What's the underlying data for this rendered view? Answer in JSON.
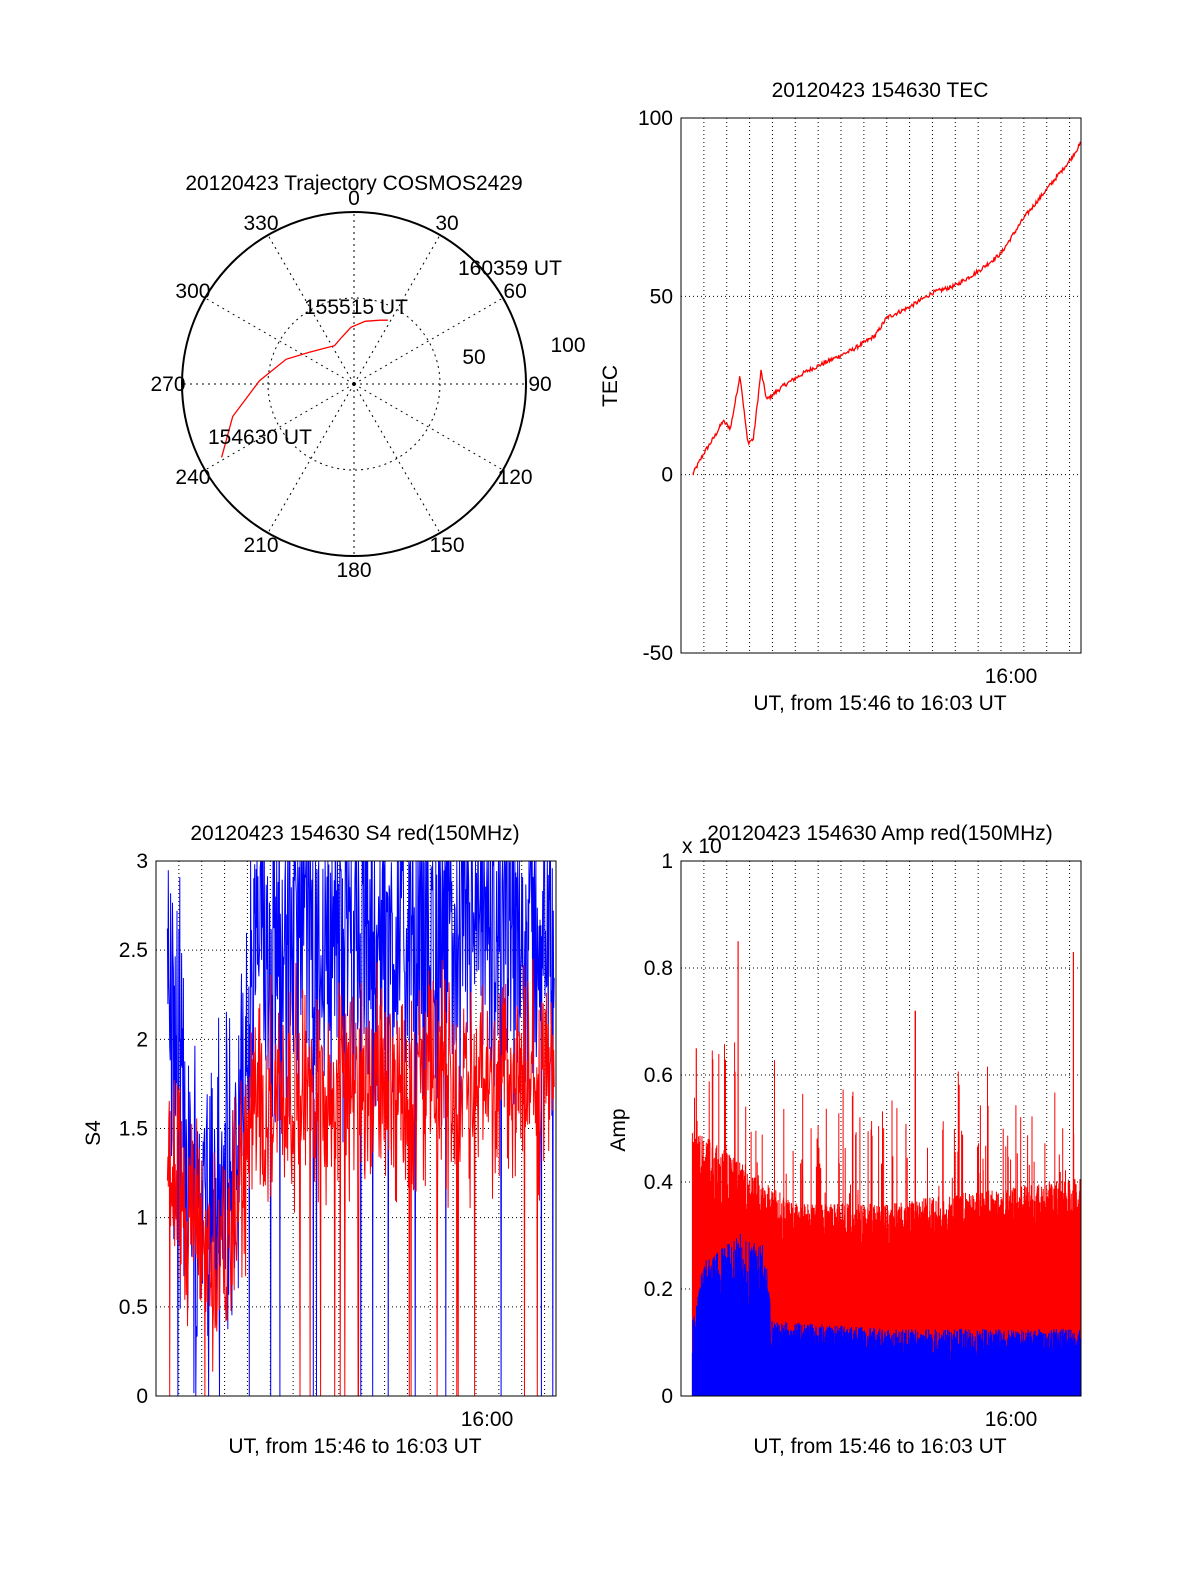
{
  "chart_data": [
    {
      "type": "polar",
      "title": "20120423 Trajectory COSMOS2429",
      "angle_labels": [
        "0",
        "30",
        "60",
        "90",
        "120",
        "150",
        "180",
        "210",
        "240",
        "270",
        "300",
        "330"
      ],
      "radius_labels": [
        "50",
        "100"
      ],
      "rlim": [
        0,
        100
      ],
      "series": [
        {
          "color": "#ff0000",
          "points": [
            {
              "az": 241,
              "el": 12
            },
            {
              "az": 255,
              "el": 27
            },
            {
              "az": 272,
              "el": 45
            },
            {
              "az": 290,
              "el": 58
            },
            {
              "az": 305,
              "el": 68
            },
            {
              "az": 320,
              "el": 73
            },
            {
              "az": 333,
              "el": 75
            },
            {
              "az": 345,
              "el": 72
            },
            {
              "az": 357,
              "el": 67
            },
            {
              "az": 10,
              "el": 63
            },
            {
              "az": 22,
              "el": 60
            },
            {
              "az": 28,
              "el": 58
            }
          ]
        }
      ],
      "annotations": [
        {
          "text": "154630 UT"
        },
        {
          "text": "155515 UT"
        },
        {
          "text": "160359 UT"
        }
      ]
    },
    {
      "type": "line",
      "title": "20120423 154630 TEC",
      "ylabel": "TEC",
      "xlabel": "UT, from 15:46 to 16:03 UT",
      "xlim": [
        "15:46:00",
        "16:03:30"
      ],
      "ylim": [
        -50,
        100
      ],
      "yticks": [
        -50,
        0,
        50,
        100
      ],
      "xticks": [
        {
          "time": "16:00:00",
          "label": "16:00"
        }
      ],
      "grid": true,
      "series": [
        {
          "color": "#ff0000",
          "points": [
            [
              "15:46:30",
              0
            ],
            [
              "15:47:00",
              6
            ],
            [
              "15:47:30",
              11
            ],
            [
              "15:47:50",
              15
            ],
            [
              "15:48:10",
              13
            ],
            [
              "15:48:35",
              28
            ],
            [
              "15:48:55",
              9
            ],
            [
              "15:49:10",
              10
            ],
            [
              "15:49:30",
              29
            ],
            [
              "15:49:45",
              21
            ],
            [
              "15:50:30",
              25
            ],
            [
              "15:51:30",
              29
            ],
            [
              "15:52:30",
              32
            ],
            [
              "15:53:30",
              35
            ],
            [
              "15:54:30",
              39
            ],
            [
              "15:55:00",
              44
            ],
            [
              "15:56:00",
              47
            ],
            [
              "15:57:00",
              51
            ],
            [
              "15:58:00",
              53
            ],
            [
              "15:59:00",
              57
            ],
            [
              "16:00:00",
              62
            ],
            [
              "16:01:00",
              72
            ],
            [
              "16:02:00",
              80
            ],
            [
              "16:03:00",
              88
            ],
            [
              "16:03:30",
              93
            ]
          ]
        }
      ]
    },
    {
      "type": "line",
      "title": "20120423 154630 S4 red(150MHz)",
      "ylabel": "S4",
      "xlabel": "UT, from 15:46 to 16:03 UT",
      "xlim": [
        "15:46:00",
        "16:03:30"
      ],
      "ylim": [
        0,
        3
      ],
      "yticks": [
        0,
        0.5,
        1,
        1.5,
        2,
        2.5,
        3
      ],
      "yticklabels": [
        "0",
        "0.5",
        "1",
        "1.5",
        "2",
        "2.5",
        "3"
      ],
      "xticks": [
        {
          "time": "16:00:00",
          "label": "16:00"
        }
      ],
      "grid": true,
      "series": [
        {
          "color": "#0000ff",
          "profile": [
            [
              "15:46:30",
              2.3
            ],
            [
              "15:47:30",
              1.2
            ],
            [
              "15:48:30",
              1.1
            ],
            [
              "15:49:15",
              1.1
            ],
            [
              "15:49:45",
              1.6
            ],
            [
              "15:50:30",
              2.6
            ],
            [
              "15:55:00",
              2.6
            ],
            [
              "16:03:30",
              2.6
            ]
          ]
        },
        {
          "color": "#ff0000",
          "profile": [
            [
              "15:46:30",
              1.5
            ],
            [
              "15:47:00",
              1.2
            ],
            [
              "15:47:30",
              1.0
            ],
            [
              "15:48:30",
              0.75
            ],
            [
              "15:49:15",
              0.8
            ],
            [
              "15:49:40",
              1.2
            ],
            [
              "15:50:30",
              1.7
            ],
            [
              "15:55:00",
              1.75
            ],
            [
              "16:03:30",
              1.8
            ]
          ]
        }
      ]
    },
    {
      "type": "bar",
      "title": "20120423 154630 Amp red(150MHz)",
      "ylabel": "Amp",
      "xlabel": "UT, from 15:46 to 16:03 UT",
      "multiplier": "x 10",
      "xlim": [
        "15:46:00",
        "16:03:30"
      ],
      "ylim": [
        0,
        1
      ],
      "yticks": [
        0,
        0.2,
        0.4,
        0.6,
        0.8,
        1
      ],
      "yticklabels": [
        "0",
        "0.2",
        "0.4",
        "0.6",
        "0.8",
        "1"
      ],
      "xticks": [
        {
          "time": "16:00:00",
          "label": "16:00"
        }
      ],
      "grid": true,
      "series": [
        {
          "color": "#ff0000",
          "profile": [
            [
              "15:46:30",
              0.42
            ],
            [
              "15:48:00",
              0.38
            ],
            [
              "15:49:30",
              0.34
            ],
            [
              "15:51:00",
              0.3
            ],
            [
              "15:55:00",
              0.3
            ],
            [
              "15:59:00",
              0.32
            ],
            [
              "16:03:30",
              0.34
            ]
          ],
          "peaks": [
            {
              "time": "15:46:40",
              "value": 0.65
            },
            {
              "time": "15:48:30",
              "value": 0.85
            },
            {
              "time": "15:56:15",
              "value": 0.72
            },
            {
              "time": "16:03:10",
              "value": 0.83
            }
          ]
        },
        {
          "color": "#0000ff",
          "profile": [
            [
              "15:46:30",
              0.1
            ],
            [
              "15:47:00",
              0.18
            ],
            [
              "15:48:30",
              0.22
            ],
            [
              "15:49:40",
              0.2
            ],
            [
              "15:50:00",
              0.1
            ],
            [
              "15:55:00",
              0.09
            ],
            [
              "16:03:30",
              0.09
            ]
          ]
        }
      ]
    }
  ]
}
